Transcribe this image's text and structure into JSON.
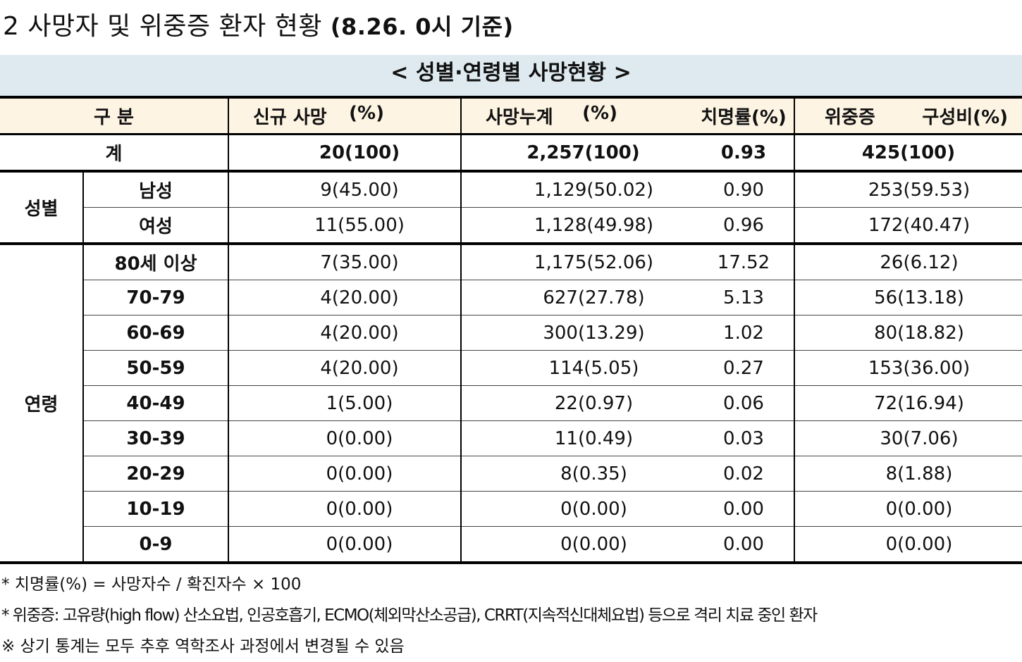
{
  "title": {
    "number": "2",
    "text": "사망자 및 위중증 환자 현황",
    "date": "(8.26. 0시 기준)"
  },
  "subtitle": "< 성별·연령별 사망현황 >",
  "table": {
    "header": {
      "category": "구 분",
      "new_deaths": "신규 사망",
      "new_deaths_pct": "(%)",
      "cum_deaths": "사망누계",
      "cum_deaths_pct": "(%)",
      "fatality": "치명률(%)",
      "severe": "위중증",
      "severe_pct": "구성비(%)"
    },
    "total": {
      "label": "계",
      "new_deaths": "20(100)",
      "cum_deaths": "2,257(100)",
      "fatality": "0.93",
      "severe": "425(100)"
    },
    "gender_group": "성별",
    "gender_rows": [
      {
        "label": "남성",
        "new_deaths": "9(45.00)",
        "cum_deaths": "1,129(50.02)",
        "fatality": "0.90",
        "severe": "253(59.53)"
      },
      {
        "label": "여성",
        "new_deaths": "11(55.00)",
        "cum_deaths": "1,128(49.98)",
        "fatality": "0.96",
        "severe": "172(40.47)"
      }
    ],
    "age_group": "연령",
    "age_rows": [
      {
        "label": "80세 이상",
        "new_deaths": "7(35.00)",
        "cum_deaths": "1,175(52.06)",
        "fatality": "17.52",
        "severe": "26(6.12)"
      },
      {
        "label": "70-79",
        "new_deaths": "4(20.00)",
        "cum_deaths": "627(27.78)",
        "fatality": "5.13",
        "severe": "56(13.18)"
      },
      {
        "label": "60-69",
        "new_deaths": "4(20.00)",
        "cum_deaths": "300(13.29)",
        "fatality": "1.02",
        "severe": "80(18.82)"
      },
      {
        "label": "50-59",
        "new_deaths": "4(20.00)",
        "cum_deaths": "114(5.05)",
        "fatality": "0.27",
        "severe": "153(36.00)"
      },
      {
        "label": "40-49",
        "new_deaths": "1(5.00)",
        "cum_deaths": "22(0.97)",
        "fatality": "0.06",
        "severe": "72(16.94)"
      },
      {
        "label": "30-39",
        "new_deaths": "0(0.00)",
        "cum_deaths": "11(0.49)",
        "fatality": "0.03",
        "severe": "30(7.06)"
      },
      {
        "label": "20-29",
        "new_deaths": "0(0.00)",
        "cum_deaths": "8(0.35)",
        "fatality": "0.02",
        "severe": "8(1.88)"
      },
      {
        "label": "10-19",
        "new_deaths": "0(0.00)",
        "cum_deaths": "0(0.00)",
        "fatality": "0.00",
        "severe": "0(0.00)"
      },
      {
        "label": "0-9",
        "new_deaths": "0(0.00)",
        "cum_deaths": "0(0.00)",
        "fatality": "0.00",
        "severe": "0(0.00)"
      }
    ]
  },
  "notes": [
    "* 치명률(%) = 사망자수 / 확진자수 × 100",
    "* 위중증: 고유량(high flow) 산소요법, 인공호흡기, ECMO(체외막산소공급), CRRT(지속적신대체요법) 등으로 격리 치료 중인 환자",
    "※ 상기 통계는 모두 추후 역학조사 과정에서 변경될 수 있음"
  ]
}
